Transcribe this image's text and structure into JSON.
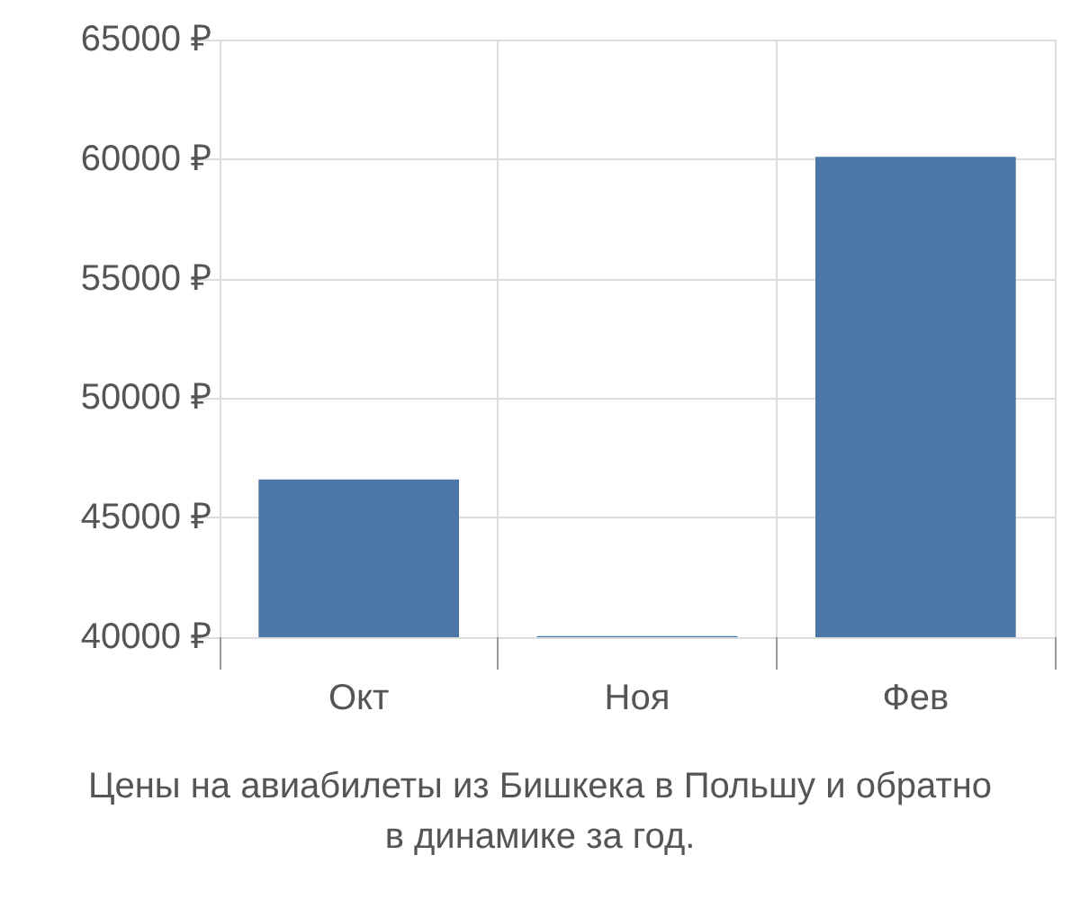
{
  "chart_data": {
    "type": "bar",
    "title": "Цены на авиабилеты из Бишкека в Польшу и обратно\nв динамике за год.",
    "categories": [
      "Окт",
      "Ноя",
      "Фев"
    ],
    "values": [
      46600,
      40050,
      60100
    ],
    "color": "#4c78a8",
    "ylim": [
      40000,
      65000
    ],
    "yticks": [
      {
        "value": 40000,
        "label": "40000 ₽"
      },
      {
        "value": 45000,
        "label": "45000 ₽"
      },
      {
        "value": 50000,
        "label": "50000 ₽"
      },
      {
        "value": 55000,
        "label": "55000 ₽"
      },
      {
        "value": 60000,
        "label": "60000 ₽"
      },
      {
        "value": 65000,
        "label": "65000 ₽"
      }
    ],
    "grid": true
  }
}
